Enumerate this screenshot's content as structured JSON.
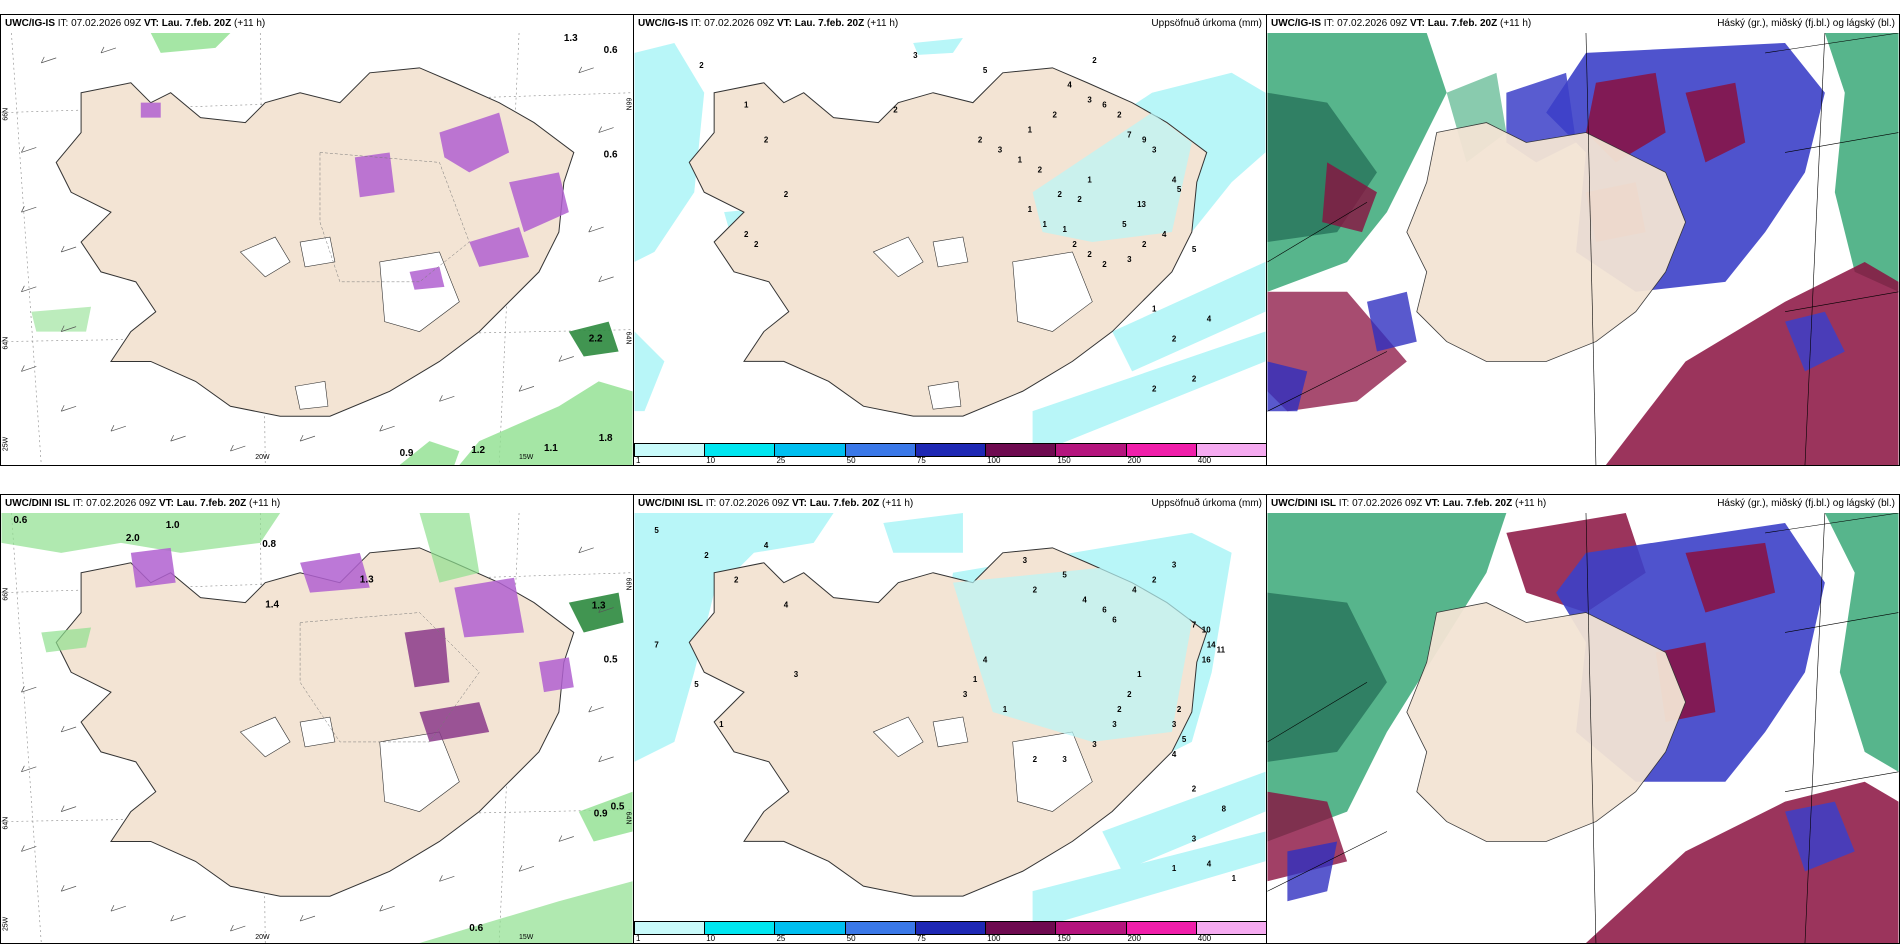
{
  "panels": [
    {
      "model": "UWC/IG-IS",
      "it": "07.02.2026 09Z",
      "vt": "Lau. 7.feb. 20Z",
      "lead": "(+11 h)",
      "right_title": "",
      "kind": "precip-wind",
      "numbers": [
        "1.3",
        "0.6",
        "0.6",
        "2.2",
        "0.9",
        "1.2",
        "1.1",
        "1.8"
      ],
      "lat_labels": [
        "66N",
        "64N",
        "64N",
        "66N"
      ],
      "lon_labels": [
        "20W",
        "15W",
        "25W"
      ]
    },
    {
      "model": "UWC/IG-IS",
      "it": "07.02.2026 09Z",
      "vt": "Lau. 7.feb. 20Z",
      "lead": "(+11 h)",
      "right_title": "Uppsöfnuð úrkoma (mm)",
      "kind": "accum",
      "numbers": [
        "2",
        "5",
        "2",
        "1",
        "2",
        "4",
        "3",
        "2",
        "2",
        "2",
        "2",
        "3",
        "6",
        "2",
        "7",
        "9",
        "3",
        "4",
        "5",
        "13",
        "5",
        "4",
        "2",
        "3",
        "1",
        "1",
        "1",
        "2",
        "2",
        "2",
        "1",
        "2",
        "3",
        "1",
        "2",
        "2",
        "1",
        "2",
        "2",
        "5",
        "1",
        "4",
        "2",
        "2",
        "2"
      ]
    },
    {
      "model": "UWC/IG-IS",
      "it": "07.02.2026 09Z",
      "vt": "Lau. 7.feb. 20Z",
      "lead": "(+11 h)",
      "right_title": "Háský (gr.), miðský (fj.bl.) og lágský (bl.)",
      "kind": "cloud"
    },
    {
      "model": "UWC/DINI ISL",
      "it": "07.02.2026 09Z",
      "vt": "Lau. 7.feb. 20Z",
      "lead": "(+11 h)",
      "right_title": "",
      "kind": "precip-wind",
      "numbers": [
        "0.6",
        "1.0",
        "2.0",
        "0.8",
        "1.4",
        "1.3",
        "1.3",
        "0.5",
        "0.9",
        "0.5",
        "0.6"
      ],
      "lat_labels": [
        "66N",
        "64N",
        "64N",
        "66N"
      ],
      "lon_labels": [
        "20W",
        "15W",
        "25W"
      ]
    },
    {
      "model": "UWC/DINI ISL",
      "it": "07.02.2026 09Z",
      "vt": "Lau. 7.feb. 20Z",
      "lead": "(+11 h)",
      "right_title": "Uppsöfnuð úrkoma (mm)",
      "kind": "accum",
      "numbers": [
        "5",
        "2",
        "4",
        "2",
        "4",
        "7",
        "5",
        "3",
        "1",
        "3",
        "2",
        "5",
        "4",
        "6",
        "6",
        "4",
        "2",
        "3",
        "7",
        "10",
        "14",
        "16",
        "11",
        "2",
        "3",
        "5",
        "4",
        "1",
        "2",
        "2",
        "3",
        "3",
        "3",
        "2",
        "1",
        "4",
        "1",
        "3",
        "2",
        "8",
        "3",
        "4",
        "1",
        "1"
      ]
    },
    {
      "model": "UWC/DINI ISL",
      "it": "07.02.2026 09Z",
      "vt": "Lau. 7.feb. 20Z",
      "lead": "(+11 h)",
      "right_title": "Háský (gr.), miðský (fj.bl.) og lágský (bl.)",
      "kind": "cloud"
    }
  ],
  "legend": {
    "labels": [
      "1",
      "10",
      "25",
      "50",
      "75",
      "100",
      "150",
      "200",
      "400"
    ],
    "colors": [
      "#c8fafa",
      "#00e6f0",
      "#00bff0",
      "#3a78e8",
      "#1e28b4",
      "#6e0a50",
      "#b4147d",
      "#f01eaa",
      "#f5aaf0"
    ]
  },
  "colors": {
    "land": "#f3e4d4",
    "precip_green": "#8fe08f",
    "precip_purple": "#b060d0",
    "accum_cyan": "#b8f6f8",
    "cloud_green": "#3aa878",
    "cloud_blue": "#3030c0",
    "cloud_maroon": "#8a1040"
  }
}
